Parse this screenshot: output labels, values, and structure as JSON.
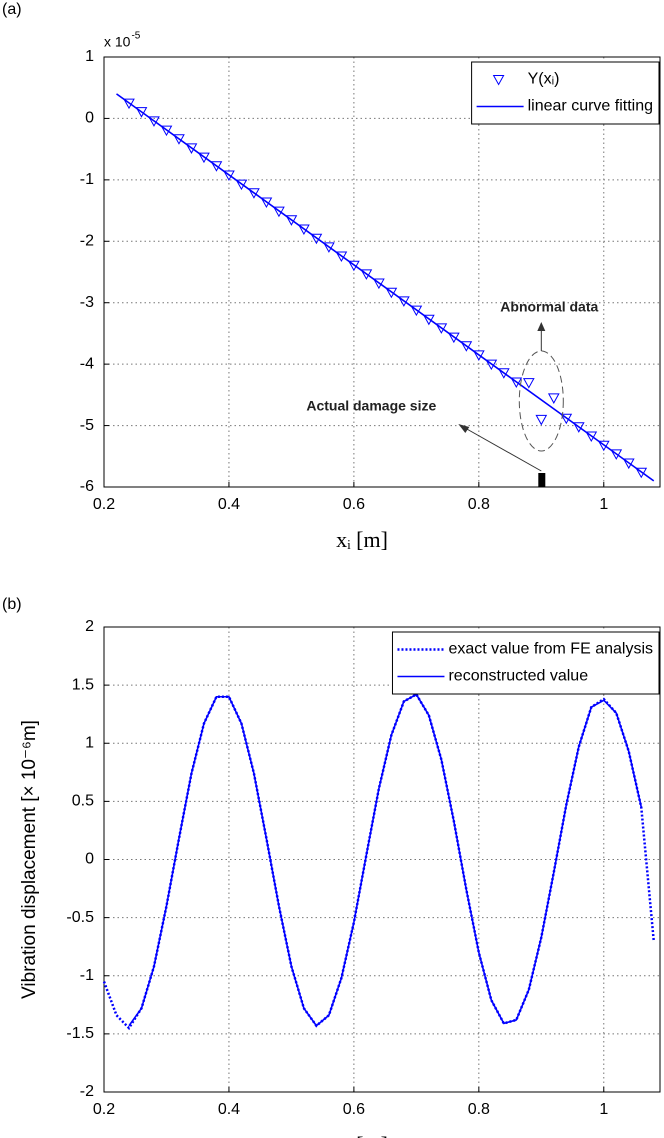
{
  "chart_data": [
    {
      "type": "line",
      "panel_label": "(a)",
      "x_label": "xᵢ [m]",
      "y_multiplier": "x 10",
      "y_multiplier_exponent": "-5",
      "xlim": [
        0.2,
        1.09
      ],
      "ylim": [
        -6,
        1
      ],
      "xticks": [
        0.2,
        0.4,
        0.6,
        0.8,
        1
      ],
      "yticks": [
        -6,
        -5,
        -4,
        -3,
        -2,
        -1,
        0,
        1
      ],
      "grid": true,
      "legend": "upper right",
      "series": [
        {
          "name": "Y(xᵢ)",
          "color": "#0000ff",
          "style": "triangle-down",
          "x": [
            0.24,
            0.26,
            0.28,
            0.3,
            0.32,
            0.34,
            0.36,
            0.38,
            0.4,
            0.42,
            0.44,
            0.46,
            0.48,
            0.5,
            0.52,
            0.54,
            0.56,
            0.58,
            0.6,
            0.62,
            0.64,
            0.66,
            0.68,
            0.7,
            0.72,
            0.74,
            0.76,
            0.78,
            0.8,
            0.82,
            0.84,
            0.86,
            0.88,
            0.9,
            0.92,
            0.94,
            0.96,
            0.98,
            1.0,
            1.02,
            1.04,
            1.06
          ],
          "values": [
            0.25,
            0.11,
            -0.04,
            -0.19,
            -0.33,
            -0.48,
            -0.63,
            -0.77,
            -0.92,
            -1.07,
            -1.21,
            -1.36,
            -1.51,
            -1.65,
            -1.8,
            -1.95,
            -2.09,
            -2.24,
            -2.39,
            -2.53,
            -2.68,
            -2.83,
            -2.97,
            -3.12,
            -3.27,
            -3.41,
            -3.56,
            -3.7,
            -3.85,
            -4.0,
            -4.14,
            -4.29,
            -4.3,
            -4.9,
            -4.55,
            -4.88,
            -5.02,
            -5.17,
            -5.32,
            -5.46,
            -5.61,
            -5.76
          ]
        },
        {
          "name": "linear curve fitting",
          "color": "#0000ff",
          "style": "solid",
          "x": [
            0.22,
            1.08
          ],
          "values": [
            0.4,
            -5.9
          ]
        }
      ],
      "annotations": [
        "Abnormal data",
        "Actual damage size"
      ],
      "damage_location": 0.9
    },
    {
      "type": "line",
      "panel_label": "(b)",
      "x_label": "xᵢ [m]",
      "y_label": "Vibration displacement [× 10⁻⁶m]",
      "xlim": [
        0.2,
        1.09
      ],
      "ylim": [
        -2,
        2
      ],
      "xticks": [
        0.2,
        0.4,
        0.6,
        0.8,
        1
      ],
      "yticks": [
        -2,
        -1.5,
        -1,
        -0.5,
        0,
        0.5,
        1,
        1.5,
        2
      ],
      "grid": true,
      "legend": "upper right",
      "x": [
        0.2,
        0.22,
        0.24,
        0.26,
        0.28,
        0.3,
        0.32,
        0.34,
        0.36,
        0.38,
        0.4,
        0.42,
        0.44,
        0.46,
        0.48,
        0.5,
        0.52,
        0.54,
        0.56,
        0.58,
        0.6,
        0.62,
        0.64,
        0.66,
        0.68,
        0.7,
        0.72,
        0.74,
        0.76,
        0.78,
        0.8,
        0.82,
        0.84,
        0.86,
        0.88,
        0.9,
        0.92,
        0.94,
        0.96,
        0.98,
        1.0,
        1.02,
        1.04,
        1.06,
        1.08
      ],
      "series": [
        {
          "name": "exact value from FE analysis",
          "color": "#0000ff",
          "style": "dotted",
          "values": [
            -1.05,
            -1.34,
            -1.45,
            -1.28,
            -0.92,
            -0.4,
            0.18,
            0.74,
            1.17,
            1.4,
            1.4,
            1.17,
            0.74,
            0.18,
            -0.4,
            -0.92,
            -1.28,
            -1.43,
            -1.34,
            -1.02,
            -0.54,
            0.04,
            0.61,
            1.07,
            1.36,
            1.42,
            1.24,
            0.86,
            0.33,
            -0.26,
            -0.8,
            -1.21,
            -1.41,
            -1.38,
            -1.12,
            -0.67,
            -0.11,
            0.47,
            0.97,
            1.31,
            1.38,
            1.26,
            0.93,
            0.45,
            -0.7
          ]
        },
        {
          "name": "reconstructed value",
          "color": "#0000ff",
          "style": "solid",
          "values": [
            null,
            null,
            -1.43,
            -1.28,
            -0.92,
            -0.4,
            0.18,
            0.74,
            1.17,
            1.4,
            1.4,
            1.17,
            0.74,
            0.18,
            -0.4,
            -0.92,
            -1.28,
            -1.43,
            -1.34,
            -1.02,
            -0.54,
            0.04,
            0.61,
            1.07,
            1.36,
            1.42,
            1.24,
            0.86,
            0.33,
            -0.26,
            -0.8,
            -1.21,
            -1.41,
            -1.38,
            -1.12,
            -0.67,
            -0.11,
            0.47,
            0.97,
            1.31,
            1.37,
            1.26,
            0.93,
            0.45,
            null
          ]
        }
      ]
    }
  ]
}
